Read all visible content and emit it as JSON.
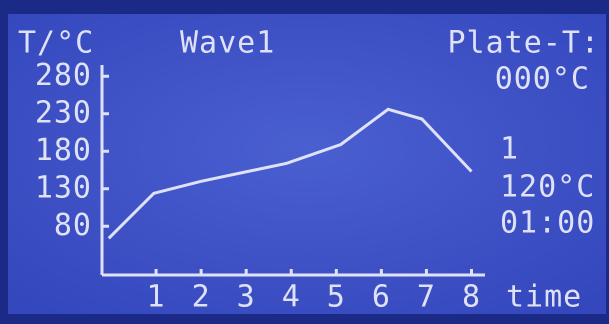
{
  "chart_data": {
    "type": "line",
    "title": "Wave1",
    "y_label": "T/°C",
    "x_label": "time",
    "x": [
      -0.05,
      0.95,
      2,
      3.9,
      5.1,
      6.15,
      6.9,
      8
    ],
    "values": [
      64,
      124,
      140,
      164,
      189,
      236,
      223,
      153
    ],
    "color": "#dfe2f7",
    "xlim": [
      -0.2,
      8.3
    ],
    "ylim": [
      15,
      295
    ],
    "xticks": [
      1,
      2,
      3,
      4,
      5,
      6,
      7,
      8
    ],
    "yticks": [
      80,
      130,
      180,
      230,
      280
    ],
    "annotations": [
      "Plate-T:",
      "000°C",
      "1",
      "120°C",
      "01:00"
    ]
  }
}
